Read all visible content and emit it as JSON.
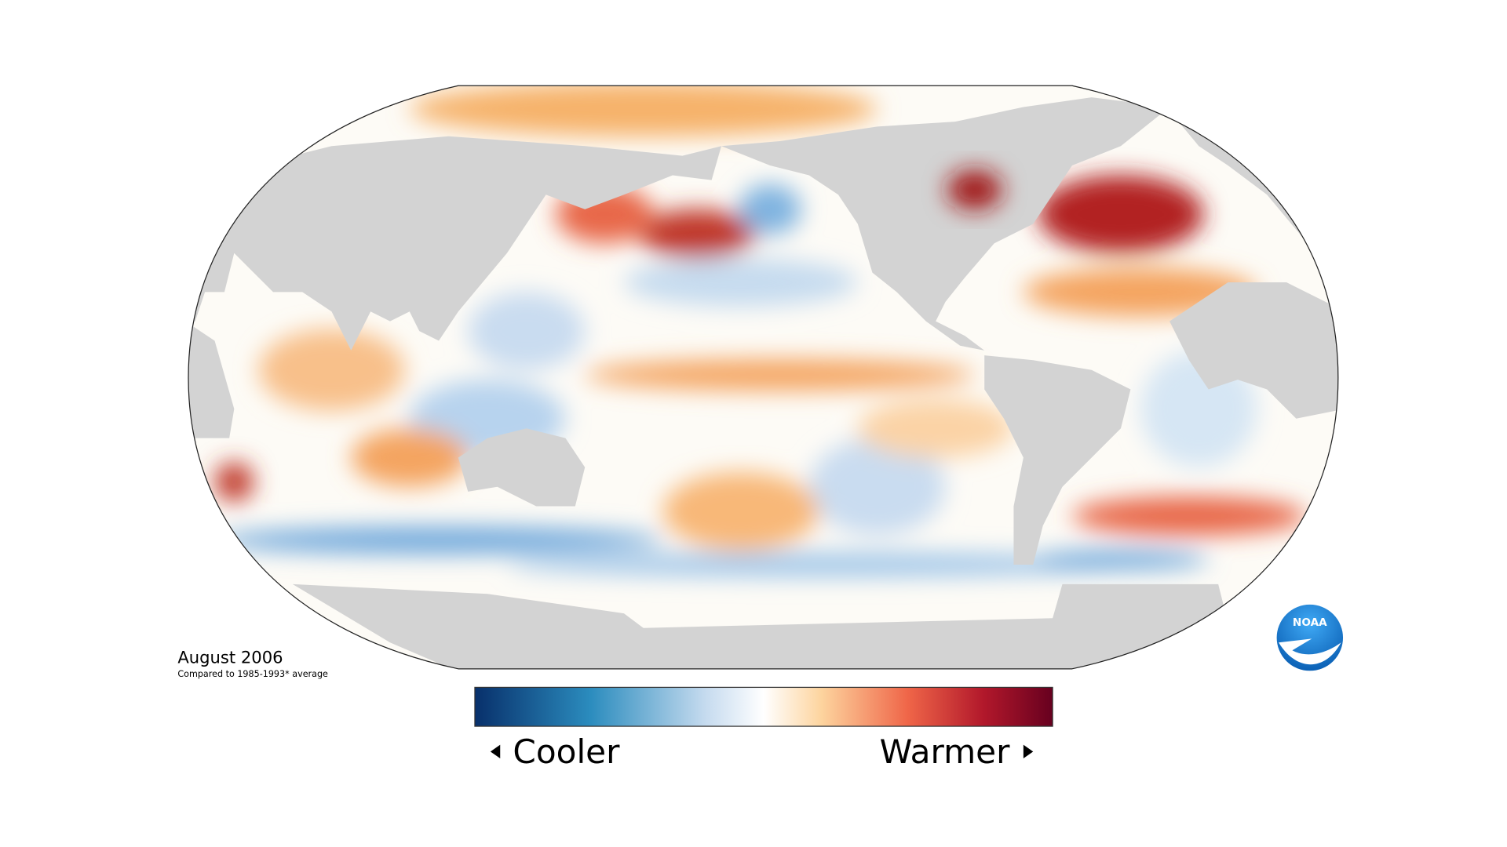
{
  "caption": {
    "title": "August 2006",
    "subtitle": "Compared to 1985-1993* average"
  },
  "legend": {
    "low": "Cooler",
    "high": "Warmer"
  },
  "logo": {
    "label": "NOAA"
  }
}
